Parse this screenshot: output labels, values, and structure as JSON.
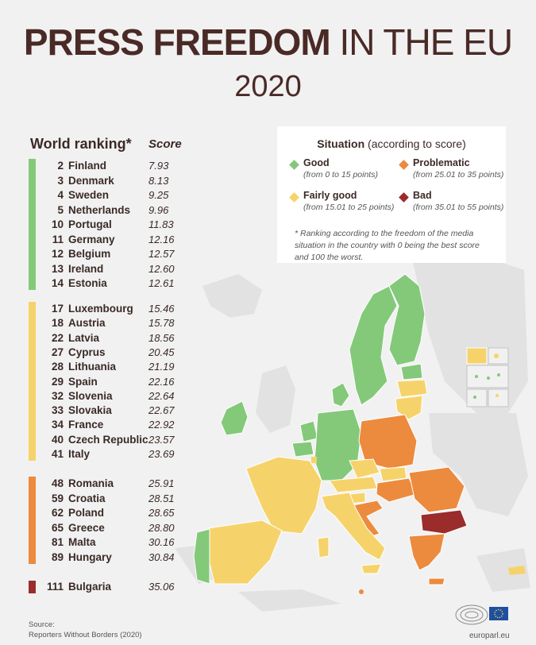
{
  "title": {
    "bold": "PRESS FREEDOM",
    "light": "IN THE EU",
    "year": "2020"
  },
  "table": {
    "rank_header": "World ranking*",
    "score_header": "Score",
    "groups": [
      {
        "situation": "Good",
        "rows": [
          {
            "rank": "2",
            "country": "Finland",
            "score": "7.93"
          },
          {
            "rank": "3",
            "country": "Denmark",
            "score": "8.13"
          },
          {
            "rank": "4",
            "country": "Sweden",
            "score": "9.25"
          },
          {
            "rank": "5",
            "country": "Netherlands",
            "score": "9.96"
          },
          {
            "rank": "10",
            "country": "Portugal",
            "score": "11.83"
          },
          {
            "rank": "11",
            "country": "Germany",
            "score": "12.16"
          },
          {
            "rank": "12",
            "country": "Belgium",
            "score": "12.57"
          },
          {
            "rank": "13",
            "country": "Ireland",
            "score": "12.60"
          },
          {
            "rank": "14",
            "country": "Estonia",
            "score": "12.61"
          }
        ]
      },
      {
        "situation": "Fairly good",
        "rows": [
          {
            "rank": "17",
            "country": "Luxembourg",
            "score": "15.46"
          },
          {
            "rank": "18",
            "country": "Austria",
            "score": "15.78"
          },
          {
            "rank": "22",
            "country": "Latvia",
            "score": "18.56"
          },
          {
            "rank": "27",
            "country": "Cyprus",
            "score": "20.45"
          },
          {
            "rank": "28",
            "country": "Lithuania",
            "score": "21.19"
          },
          {
            "rank": "29",
            "country": "Spain",
            "score": "22.16"
          },
          {
            "rank": "32",
            "country": "Slovenia",
            "score": "22.64"
          },
          {
            "rank": "33",
            "country": "Slovakia",
            "score": "22.67"
          },
          {
            "rank": "34",
            "country": "France",
            "score": "22.92"
          },
          {
            "rank": "40",
            "country": "Czech Republic",
            "score": "23.57"
          },
          {
            "rank": "41",
            "country": "Italy",
            "score": "23.69"
          }
        ]
      },
      {
        "situation": "Problematic",
        "rows": [
          {
            "rank": "48",
            "country": "Romania",
            "score": "25.91"
          },
          {
            "rank": "59",
            "country": "Croatia",
            "score": "28.51"
          },
          {
            "rank": "62",
            "country": "Poland",
            "score": "28.65"
          },
          {
            "rank": "65",
            "country": "Greece",
            "score": "28.80"
          },
          {
            "rank": "81",
            "country": "Malta",
            "score": "30.16"
          },
          {
            "rank": "89",
            "country": "Hungary",
            "score": "30.84"
          }
        ]
      },
      {
        "situation": "Bad",
        "rows": [
          {
            "rank": "111",
            "country": "Bulgaria",
            "score": "35.06"
          }
        ]
      }
    ]
  },
  "legend": {
    "title_bold": "Situation",
    "title_rest": "(according to score)",
    "items": [
      {
        "label": "Good",
        "range": "(from 0 to 15 points)"
      },
      {
        "label": "Problematic",
        "range": "(from 25.01 to 35 points)"
      },
      {
        "label": "Fairly good",
        "range": "(from 15.01 to 25 points)"
      },
      {
        "label": "Bad",
        "range": "(from 35.01 to 55 points)"
      }
    ],
    "note": "* Ranking according to the freedom of the media situation in the country with 0 being the best score and 100 the worst."
  },
  "colors": {
    "good": "#84c97a",
    "fairly_good": "#f6d36a",
    "problematic": "#ec8a3e",
    "bad": "#9b2c2c",
    "non_eu": "#e2e2e2",
    "text": "#3a2a26"
  },
  "source": {
    "label": "Source:",
    "text": "Reporters Without Borders (2020)"
  },
  "site": "europarl.eu",
  "icons": {
    "logo": "european-parliament-logo-icon"
  }
}
